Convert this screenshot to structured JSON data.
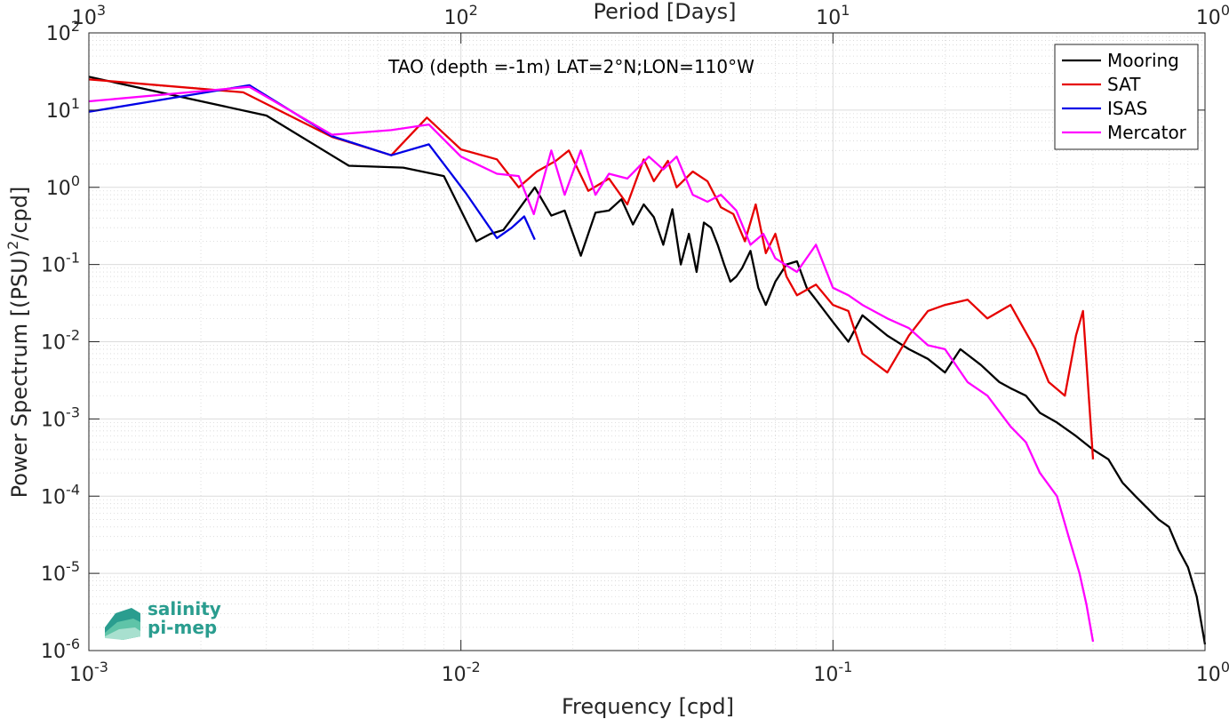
{
  "chart_data": {
    "type": "line",
    "title": "TAO (depth =-1m) LAT=2°N;LON=110°W",
    "xlabel": "Frequency [cpd]",
    "ylabel_main": "Power Spectrum [(PSU)",
    "ylabel_sup": "2",
    "ylabel_tail": "/cpd]",
    "top_xlabel": "Period [Days]",
    "xscale": "log",
    "yscale": "log",
    "xlim": [
      0.001,
      1
    ],
    "ylim": [
      1e-06,
      100
    ],
    "grid": true,
    "legend_position": "top-right",
    "x_ticks": [
      {
        "value": 0.001,
        "base": "10",
        "exp": "-3"
      },
      {
        "value": 0.01,
        "base": "10",
        "exp": "-2"
      },
      {
        "value": 0.1,
        "base": "10",
        "exp": "-1"
      },
      {
        "value": 1,
        "base": "10",
        "exp": "0"
      }
    ],
    "top_ticks": [
      {
        "value": 0.001,
        "base": "10",
        "exp": "3"
      },
      {
        "value": 0.01,
        "base": "10",
        "exp": "2"
      },
      {
        "value": 0.1,
        "base": "10",
        "exp": "1"
      },
      {
        "value": 1,
        "base": "10",
        "exp": "0"
      }
    ],
    "y_ticks": [
      {
        "value": 1e-06,
        "base": "10",
        "exp": "-6"
      },
      {
        "value": 1e-05,
        "base": "10",
        "exp": "-5"
      },
      {
        "value": 0.0001,
        "base": "10",
        "exp": "-4"
      },
      {
        "value": 0.001,
        "base": "10",
        "exp": "-3"
      },
      {
        "value": 0.01,
        "base": "10",
        "exp": "-2"
      },
      {
        "value": 0.1,
        "base": "10",
        "exp": "-1"
      },
      {
        "value": 1,
        "base": "10",
        "exp": "0"
      },
      {
        "value": 10,
        "base": "10",
        "exp": "1"
      },
      {
        "value": 100,
        "base": "10",
        "exp": "2"
      }
    ],
    "series": [
      {
        "name": "Mooring",
        "color": "#000000",
        "x": [
          0.001,
          0.003,
          0.005,
          0.007,
          0.009,
          0.011,
          0.012,
          0.013,
          0.014,
          0.0158,
          0.0175,
          0.019,
          0.021,
          0.023,
          0.025,
          0.027,
          0.029,
          0.031,
          0.033,
          0.035,
          0.037,
          0.039,
          0.041,
          0.043,
          0.045,
          0.047,
          0.049,
          0.051,
          0.053,
          0.055,
          0.057,
          0.06,
          0.063,
          0.066,
          0.07,
          0.075,
          0.08,
          0.085,
          0.09,
          0.1,
          0.11,
          0.12,
          0.14,
          0.16,
          0.18,
          0.2,
          0.22,
          0.25,
          0.28,
          0.3,
          0.33,
          0.36,
          0.4,
          0.45,
          0.5,
          0.55,
          0.6,
          0.65,
          0.7,
          0.75,
          0.8,
          0.85,
          0.9,
          0.95,
          1.0
        ],
        "y": [
          27,
          8.5,
          1.9,
          1.8,
          1.4,
          0.2,
          0.25,
          0.28,
          0.45,
          1.0,
          0.43,
          0.5,
          0.13,
          0.47,
          0.5,
          0.7,
          0.33,
          0.6,
          0.41,
          0.18,
          0.52,
          0.1,
          0.25,
          0.08,
          0.35,
          0.3,
          0.18,
          0.1,
          0.06,
          0.07,
          0.09,
          0.15,
          0.05,
          0.03,
          0.06,
          0.1,
          0.11,
          0.05,
          0.035,
          0.018,
          0.01,
          0.022,
          0.012,
          0.008,
          0.006,
          0.004,
          0.008,
          0.005,
          0.003,
          0.0025,
          0.002,
          0.0012,
          0.0009,
          0.0006,
          0.0004,
          0.0003,
          0.00015,
          0.0001,
          7e-05,
          5e-05,
          4e-05,
          2e-05,
          1.2e-05,
          5e-06,
          1.2e-06
        ]
      },
      {
        "name": "SAT",
        "color": "#e60000",
        "x": [
          0.001,
          0.0026,
          0.0045,
          0.0065,
          0.0081,
          0.01,
          0.0125,
          0.0143,
          0.016,
          0.018,
          0.0195,
          0.022,
          0.025,
          0.028,
          0.031,
          0.033,
          0.036,
          0.038,
          0.042,
          0.046,
          0.05,
          0.054,
          0.058,
          0.062,
          0.066,
          0.07,
          0.075,
          0.08,
          0.09,
          0.1,
          0.11,
          0.12,
          0.14,
          0.16,
          0.18,
          0.2,
          0.23,
          0.26,
          0.3,
          0.35,
          0.38,
          0.42,
          0.45,
          0.47,
          0.5
        ],
        "y": [
          25,
          17,
          4.5,
          2.6,
          8,
          3.1,
          2.3,
          1.0,
          1.6,
          2.2,
          3.0,
          0.9,
          1.3,
          0.6,
          2.3,
          1.2,
          2.2,
          1.0,
          1.6,
          1.2,
          0.55,
          0.45,
          0.2,
          0.6,
          0.14,
          0.25,
          0.07,
          0.04,
          0.055,
          0.03,
          0.025,
          0.007,
          0.004,
          0.012,
          0.025,
          0.03,
          0.035,
          0.02,
          0.03,
          0.008,
          0.003,
          0.002,
          0.012,
          0.025,
          0.0003
        ]
      },
      {
        "name": "ISAS",
        "color": "#0000e6",
        "x": [
          0.001,
          0.0027,
          0.0045,
          0.0065,
          0.0082,
          0.0103,
          0.0125,
          0.0137,
          0.0148,
          0.0158
        ],
        "y": [
          9.5,
          21,
          4.6,
          2.6,
          3.6,
          0.85,
          0.22,
          0.3,
          0.42,
          0.21
        ]
      },
      {
        "name": "Mercator",
        "color": "#ff00ff",
        "x": [
          0.001,
          0.0027,
          0.0045,
          0.0065,
          0.0082,
          0.01,
          0.0125,
          0.0143,
          0.0157,
          0.0175,
          0.019,
          0.021,
          0.023,
          0.025,
          0.028,
          0.032,
          0.035,
          0.038,
          0.042,
          0.046,
          0.05,
          0.055,
          0.06,
          0.065,
          0.07,
          0.08,
          0.09,
          0.1,
          0.11,
          0.12,
          0.14,
          0.16,
          0.18,
          0.2,
          0.23,
          0.26,
          0.3,
          0.33,
          0.36,
          0.4,
          0.43,
          0.46,
          0.48,
          0.5
        ],
        "y": [
          13,
          20,
          4.8,
          5.5,
          6.5,
          2.5,
          1.5,
          1.4,
          0.45,
          3.0,
          0.8,
          3.0,
          0.8,
          1.5,
          1.3,
          2.5,
          1.7,
          2.5,
          0.8,
          0.65,
          0.8,
          0.5,
          0.18,
          0.25,
          0.12,
          0.08,
          0.18,
          0.05,
          0.04,
          0.03,
          0.02,
          0.015,
          0.009,
          0.008,
          0.003,
          0.002,
          0.0008,
          0.0005,
          0.0002,
          0.0001,
          3e-05,
          1e-05,
          4e-06,
          1.3e-06
        ]
      }
    ]
  },
  "logo": {
    "line1": "salinity",
    "line2": "pi-mep"
  }
}
